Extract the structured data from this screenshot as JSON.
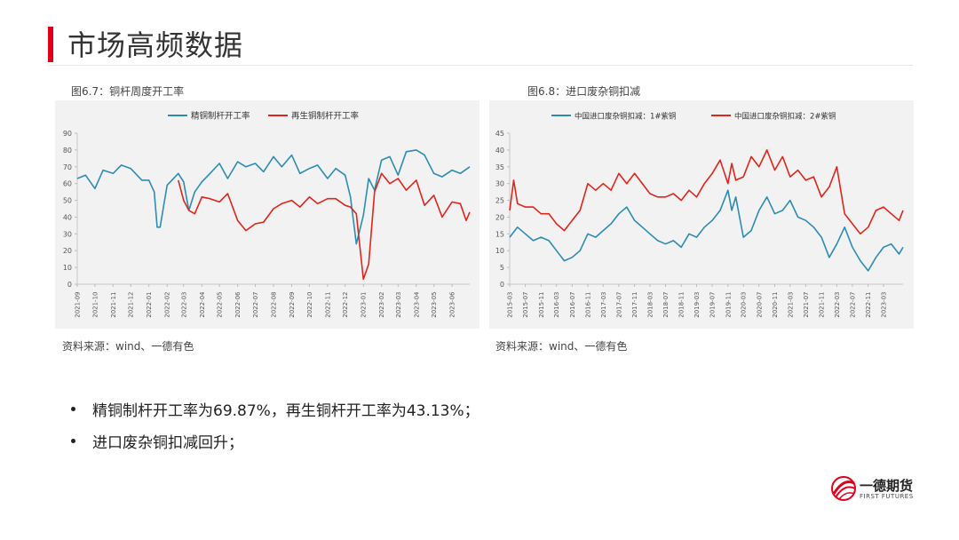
{
  "page": {
    "title": "市场高频数据"
  },
  "chart1_caption": "图6.7：铜杆周度开工率",
  "chart2_caption": "图6.8：进口废杂铜扣减",
  "source1": "资料来源：wind、一德有色",
  "source2": "资料来源：wind、一德有色",
  "bullets": [
    "精铜制杆开工率为69.87%，再生铜杆开工率为43.13%；",
    "进口废杂铜扣减回升；"
  ],
  "logo": {
    "name_cn": "一德期货",
    "name_en": "FIRST FUTURES"
  },
  "colors": {
    "series1": "#2b8cb4",
    "series2": "#e0251c",
    "accent": "#e1001b"
  },
  "chart_data": [
    {
      "type": "line",
      "title": "",
      "legend": "top",
      "ylim": [
        0,
        90
      ],
      "yticks": [
        0,
        10,
        20,
        30,
        40,
        50,
        60,
        70,
        80,
        90
      ],
      "x_start": "2021-09",
      "x_end": "2023-07",
      "xticks": [
        "2021-09",
        "2021-10",
        "2021-11",
        "2021-12",
        "2022-01",
        "2022-02",
        "2022-03",
        "2022-04",
        "2022-05",
        "2022-06",
        "2022-07",
        "2022-08",
        "2022-09",
        "2022-10",
        "2022-11",
        "2022-12",
        "2023-01",
        "2023-02",
        "2023-03",
        "2023-04",
        "2023-05",
        "2023-06"
      ],
      "series": [
        {
          "name": "精铜制杆开工率",
          "color": "#2b8cb4",
          "x": [
            "2021-09",
            "2021-09-15",
            "2021-10",
            "2021-10-15",
            "2021-11",
            "2021-11-15",
            "2021-12",
            "2021-12-20",
            "2022-01",
            "2022-01-10",
            "2022-01-15",
            "2022-01-20",
            "2022-02",
            "2022-02-20",
            "2022-03",
            "2022-03-10",
            "2022-03-20",
            "2022-04",
            "2022-04-15",
            "2022-05",
            "2022-05-15",
            "2022-06",
            "2022-06-15",
            "2022-07",
            "2022-07-15",
            "2022-08",
            "2022-08-15",
            "2022-09",
            "2022-09-15",
            "2022-10",
            "2022-10-15",
            "2022-11",
            "2022-11-15",
            "2022-12",
            "2022-12-10",
            "2022-12-20",
            "2023-01",
            "2023-01-10",
            "2023-01-20",
            "2023-02",
            "2023-02-15",
            "2023-03",
            "2023-03-15",
            "2023-04",
            "2023-04-15",
            "2023-05",
            "2023-05-15",
            "2023-06",
            "2023-06-15",
            "2023-07"
          ],
          "y": [
            63,
            65,
            57,
            68,
            66,
            71,
            69,
            62,
            62,
            55,
            34,
            34,
            59,
            66,
            61,
            44,
            55,
            61,
            66,
            72,
            63,
            73,
            70,
            72,
            67,
            76,
            70,
            77,
            66,
            69,
            71,
            63,
            69,
            65,
            52,
            24,
            41,
            63,
            56,
            74,
            76,
            65,
            79,
            80,
            77,
            66,
            64,
            68,
            66,
            70
          ]
        },
        {
          "name": "再生铜制杆开工率",
          "color": "#e0251c",
          "x": [
            "2022-02-20",
            "2022-03",
            "2022-03-10",
            "2022-03-20",
            "2022-04",
            "2022-04-15",
            "2022-05",
            "2022-05-15",
            "2022-06",
            "2022-06-15",
            "2022-07",
            "2022-07-15",
            "2022-08",
            "2022-08-15",
            "2022-09",
            "2022-09-15",
            "2022-10",
            "2022-10-15",
            "2022-11",
            "2022-11-15",
            "2022-12",
            "2022-12-10",
            "2022-12-20",
            "2023-01",
            "2023-01-10",
            "2023-01-20",
            "2023-02",
            "2023-02-15",
            "2023-03",
            "2023-03-15",
            "2023-04",
            "2023-04-15",
            "2023-05",
            "2023-05-15",
            "2023-06",
            "2023-06-15",
            "2023-06-25",
            "2023-07"
          ],
          "y": [
            62,
            50,
            44,
            42,
            52,
            51,
            49,
            54,
            38,
            32,
            36,
            37,
            45,
            48,
            50,
            46,
            52,
            48,
            51,
            51,
            47,
            46,
            42,
            3,
            12,
            55,
            66,
            60,
            63,
            56,
            62,
            47,
            53,
            40,
            49,
            48,
            38,
            43
          ]
        }
      ]
    },
    {
      "type": "line",
      "title": "",
      "legend": "top",
      "ylim": [
        0,
        45
      ],
      "yticks": [
        0,
        5,
        10,
        15,
        20,
        25,
        30,
        35,
        40,
        45
      ],
      "x_start": "2015-03",
      "x_end": "2023-08",
      "xticks": [
        "2015-03",
        "2015-07",
        "2015-11",
        "2016-03",
        "2016-07",
        "2016-11",
        "2017-03",
        "2017-07",
        "2017-11",
        "2018-03",
        "2018-07",
        "2018-11",
        "2019-03",
        "2019-07",
        "2019-11",
        "2020-03",
        "2020-07",
        "2020-11",
        "2021-03",
        "2021-07",
        "2021-11",
        "2022-03",
        "2022-07",
        "2022-11",
        "2023-03"
      ],
      "series": [
        {
          "name": "中国进口废杂铜扣减：1#紫铜",
          "color": "#2b8cb4",
          "x": [
            "2015-03",
            "2015-05",
            "2015-07",
            "2015-09",
            "2015-11",
            "2016-01",
            "2016-03",
            "2016-05",
            "2016-07",
            "2016-09",
            "2016-11",
            "2017-01",
            "2017-03",
            "2017-05",
            "2017-07",
            "2017-09",
            "2017-11",
            "2018-01",
            "2018-03",
            "2018-05",
            "2018-07",
            "2018-09",
            "2018-11",
            "2019-01",
            "2019-03",
            "2019-05",
            "2019-07",
            "2019-09",
            "2019-11",
            "2019-12",
            "2020-01",
            "2020-03",
            "2020-05",
            "2020-07",
            "2020-09",
            "2020-11",
            "2021-01",
            "2021-03",
            "2021-05",
            "2021-07",
            "2021-09",
            "2021-11",
            "2022-01",
            "2022-03",
            "2022-05",
            "2022-07",
            "2022-09",
            "2022-11",
            "2023-01",
            "2023-03",
            "2023-05",
            "2023-07",
            "2023-08"
          ],
          "y": [
            14,
            17,
            15,
            13,
            14,
            13,
            10,
            7,
            8,
            10,
            15,
            14,
            16,
            18,
            21,
            23,
            19,
            17,
            15,
            13,
            12,
            13,
            11,
            15,
            14,
            17,
            19,
            22,
            28,
            22,
            26,
            14,
            16,
            22,
            26,
            21,
            22,
            25,
            20,
            19,
            17,
            14,
            8,
            12,
            17,
            11,
            7,
            4,
            8,
            11,
            12,
            9,
            11
          ]
        },
        {
          "name": "中国进口废杂铜扣减：2#紫铜",
          "color": "#e0251c",
          "x": [
            "2015-03",
            "2015-04",
            "2015-05",
            "2015-07",
            "2015-09",
            "2015-11",
            "2016-01",
            "2016-03",
            "2016-05",
            "2016-07",
            "2016-09",
            "2016-11",
            "2017-01",
            "2017-03",
            "2017-05",
            "2017-07",
            "2017-09",
            "2017-11",
            "2018-01",
            "2018-03",
            "2018-05",
            "2018-07",
            "2018-09",
            "2018-11",
            "2019-01",
            "2019-03",
            "2019-05",
            "2019-07",
            "2019-09",
            "2019-11",
            "2019-12",
            "2020-01",
            "2020-03",
            "2020-05",
            "2020-07",
            "2020-09",
            "2020-11",
            "2021-01",
            "2021-03",
            "2021-05",
            "2021-07",
            "2021-09",
            "2021-11",
            "2022-01",
            "2022-03",
            "2022-05",
            "2022-07",
            "2022-09",
            "2022-11",
            "2023-01",
            "2023-03",
            "2023-05",
            "2023-07",
            "2023-08"
          ],
          "y": [
            22,
            31,
            24,
            23,
            23,
            21,
            21,
            18,
            16,
            19,
            22,
            30,
            28,
            30,
            28,
            33,
            30,
            33,
            30,
            27,
            26,
            26,
            27,
            25,
            28,
            26,
            30,
            33,
            37,
            30,
            36,
            31,
            32,
            38,
            35,
            40,
            34,
            38,
            32,
            34,
            31,
            32,
            26,
            29,
            35,
            21,
            18,
            15,
            17,
            22,
            23,
            21,
            19,
            22
          ]
        }
      ]
    }
  ]
}
